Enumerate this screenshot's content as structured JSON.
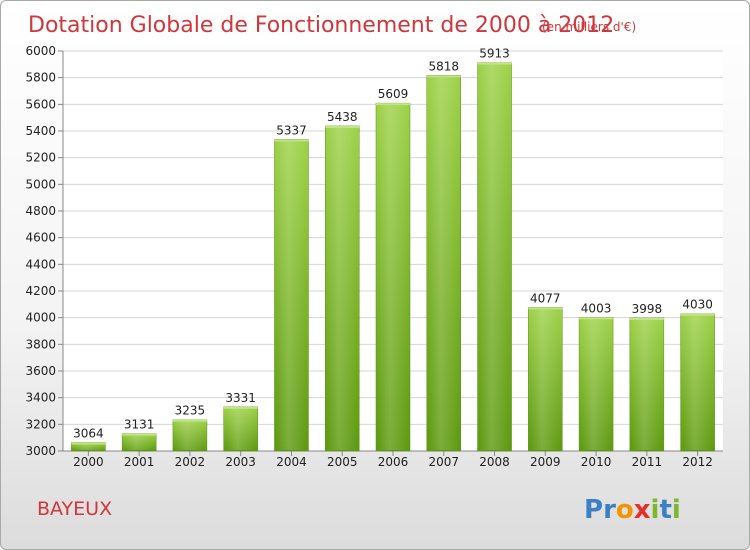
{
  "chart_data": {
    "type": "bar",
    "title": "Dotation Globale de Fonctionnement de 2000 à 2012",
    "unit": "(en milliers d'€)",
    "categories": [
      "2000",
      "2001",
      "2002",
      "2003",
      "2004",
      "2005",
      "2006",
      "2007",
      "2008",
      "2009",
      "2010",
      "2011",
      "2012"
    ],
    "values": [
      3064,
      3131,
      3235,
      3331,
      5337,
      5438,
      5609,
      5818,
      5913,
      4077,
      4003,
      3998,
      4030
    ],
    "ylim": [
      3000,
      6000
    ],
    "yticks": [
      3000,
      3200,
      3400,
      3600,
      3800,
      4000,
      4200,
      4400,
      4600,
      4800,
      5000,
      5200,
      5400,
      5600,
      5800,
      6000
    ],
    "grid": true,
    "bar_color": "#7fba2f"
  },
  "place": "BAYEUX",
  "logo": {
    "letters": [
      "P",
      "r",
      "o",
      "x",
      "i",
      "t",
      "i"
    ],
    "colors": [
      "#3b7fc4",
      "#3b7fc4",
      "#f29400",
      "#e63027",
      "#7db72f",
      "#3b7fc4",
      "#7db72f"
    ]
  }
}
